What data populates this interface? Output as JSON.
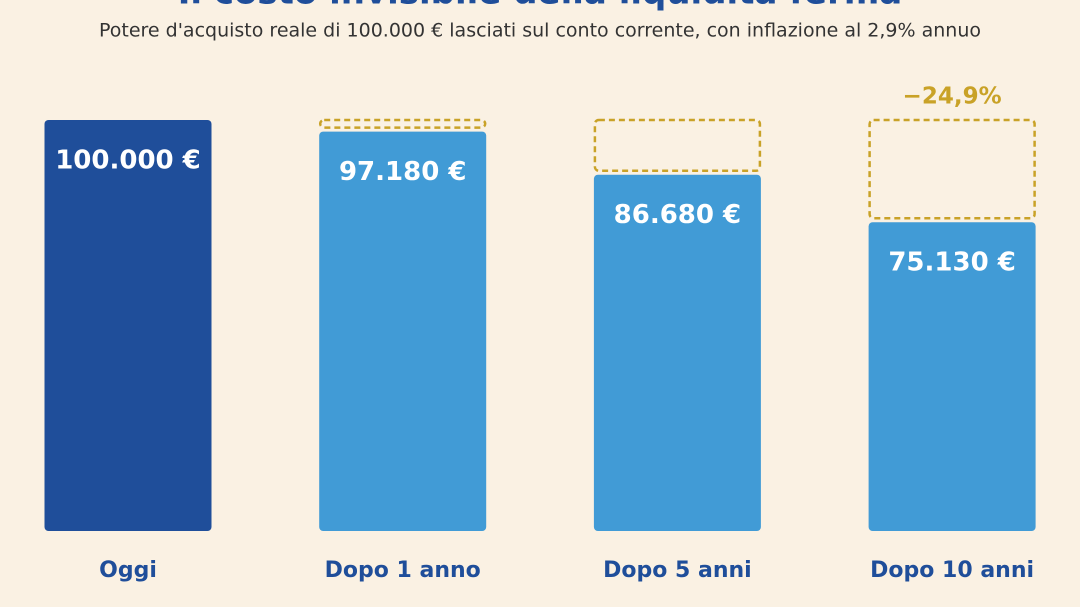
{
  "chart_data": {
    "type": "bar",
    "title": "Il costo invisibile della liquidità ferma",
    "subtitle": "Potere d'acquisto reale di 100.000 € lasciati sul conto corrente, con inflazione al 2,9% annuo",
    "categories": [
      "Oggi",
      "Dopo 1 anno",
      "Dopo 5 anni",
      "Dopo 10 anni"
    ],
    "values": [
      100000,
      97180,
      86680,
      75130
    ],
    "value_labels": [
      "100.000 €",
      "97.180 €",
      "86.680 €",
      "75.130 €"
    ],
    "colors": [
      "#1f4e9a",
      "#419bd6",
      "#419bd6",
      "#419bd6"
    ],
    "annotation": "−24,9%",
    "ylim": [
      0,
      100000
    ]
  }
}
